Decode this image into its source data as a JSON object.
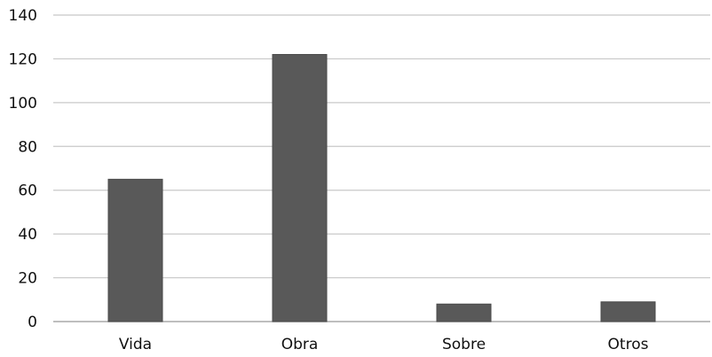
{
  "chart_data": {
    "type": "bar",
    "categories": [
      "Vida",
      "Obra",
      "Sobre",
      "Otros"
    ],
    "values": [
      65,
      122,
      8,
      9
    ],
    "ylim": [
      0,
      140
    ],
    "yticks": [
      0,
      20,
      40,
      60,
      80,
      100,
      120,
      140
    ],
    "grid": true,
    "legend": "none",
    "colors": {
      "bar": "#595959",
      "grid": "#c8c8c8",
      "text": "#111111"
    }
  }
}
